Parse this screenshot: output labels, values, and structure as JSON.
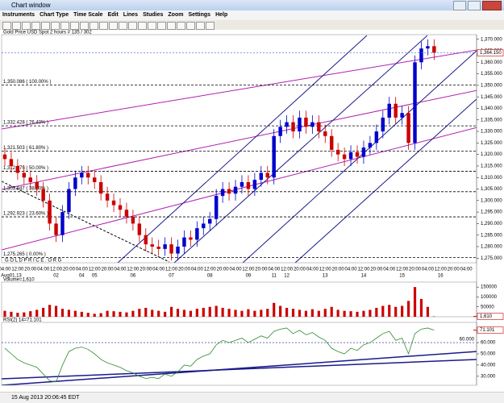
{
  "window_title": "Chart window",
  "menu": [
    "Instruments",
    "Chart Type",
    "Time Scale",
    "Edit",
    "Lines",
    "Studies",
    "Zoom",
    "Settings",
    "Help"
  ],
  "status": "15 Aug 2013 20:06:45 EDT",
  "chart_data": [
    {
      "type": "candlestick",
      "title": "Gold Price  USD Spot  2 hours  # 135 / 302",
      "watermark": "G O L D P R I C E . O R G",
      "categories": [
        null,
        "Aug01,13",
        null,
        null,
        null,
        null,
        null,
        null,
        "02",
        null,
        null,
        null,
        "04",
        null,
        "05",
        null,
        null,
        null,
        null,
        null,
        "06",
        null,
        null,
        null,
        null,
        null,
        "07",
        null,
        null,
        null,
        null,
        null,
        "08",
        null,
        null,
        null,
        null,
        null,
        "09",
        null,
        null,
        null,
        "11",
        null,
        "12",
        null,
        null,
        null,
        null,
        null,
        "13",
        null,
        null,
        null,
        null,
        null,
        "14",
        null,
        null,
        null,
        null,
        null,
        "15",
        null,
        null,
        null,
        null,
        null,
        "16",
        null,
        null,
        null,
        null,
        null
      ],
      "time_labels": [
        "04:00",
        null,
        "12:00",
        null,
        "20:00",
        null,
        "04:00",
        null,
        "12:00",
        null,
        "20:00",
        null,
        "04:00",
        null,
        "12:00",
        null,
        "20:00",
        null,
        "04:00",
        null,
        "12:00",
        null,
        "20:00",
        null,
        "04:00",
        null,
        "12:00",
        null,
        "20:00",
        null,
        "04:00",
        null,
        "12:00",
        null,
        "20:00",
        null,
        "04:00",
        null,
        "12:00",
        null,
        "20:00",
        null,
        "04:00",
        null,
        "12:00",
        null,
        "20:00",
        null,
        "04:00",
        null,
        "12:00",
        null,
        "20:00",
        null,
        "04:00",
        null,
        "12:00",
        null,
        "20:00",
        null,
        "04:00",
        null,
        "12:00",
        null,
        "20:00",
        null,
        "04:00",
        null,
        "12:00",
        null,
        "20:00",
        null,
        "04:00",
        null
      ],
      "open": [
        1320,
        1318,
        1315,
        1312,
        1310,
        1308,
        1305,
        1300,
        1290,
        1285,
        1295,
        1305,
        1310,
        1312,
        1310,
        1308,
        1303,
        1300,
        1298,
        1296,
        1293,
        1290,
        1285,
        1281,
        1280,
        1279,
        1281,
        1277,
        1280,
        1284,
        1283,
        1288,
        1290,
        1292,
        1302,
        1305,
        1303,
        1306,
        1308,
        1305,
        1309,
        1312,
        1310,
        1328,
        1332,
        1334,
        1330,
        1336,
        1332,
        1334,
        1330,
        1328,
        1322,
        1320,
        1318,
        1321,
        1319,
        1323,
        1325,
        1330,
        1336,
        1342,
        1336,
        1338,
        1325,
        1360,
        1366,
        1367,
        null,
        null,
        null,
        null,
        null,
        null
      ],
      "high": [
        1323,
        1321,
        1318,
        1315,
        1313,
        1311,
        1308,
        1303,
        1293,
        1298,
        1308,
        1313,
        1315,
        1315,
        1313,
        1311,
        1306,
        1303,
        1301,
        1299,
        1296,
        1293,
        1288,
        1284,
        1283,
        1284,
        1284,
        1283,
        1287,
        1287,
        1291,
        1293,
        1295,
        1305,
        1308,
        1308,
        1309,
        1311,
        1311,
        1312,
        1315,
        1315,
        1331,
        1335,
        1337,
        1337,
        1339,
        1339,
        1337,
        1337,
        1333,
        1331,
        1325,
        1323,
        1324,
        1324,
        1326,
        1328,
        1333,
        1339,
        1345,
        1345,
        1341,
        1341,
        1363,
        1369,
        1370,
        1370,
        null,
        null,
        null,
        null,
        null,
        null
      ],
      "low": [
        1315,
        1312,
        1309,
        1307,
        1305,
        1302,
        1297,
        1287,
        1282,
        1282,
        1292,
        1302,
        1307,
        1307,
        1305,
        1300,
        1297,
        1295,
        1293,
        1290,
        1287,
        1282,
        1278,
        1277,
        1276,
        1276,
        1274,
        1274,
        1277,
        1280,
        1280,
        1285,
        1287,
        1289,
        1299,
        1300,
        1300,
        1303,
        1302,
        1302,
        1306,
        1307,
        1307,
        1325,
        1329,
        1327,
        1327,
        1329,
        1329,
        1327,
        1325,
        1319,
        1317,
        1315,
        1315,
        1316,
        1316,
        1320,
        1322,
        1327,
        1333,
        1333,
        1333,
        1322,
        1322,
        1357,
        1363,
        1361,
        null,
        null,
        null,
        null,
        null,
        null
      ],
      "close": [
        1318,
        1315,
        1312,
        1310,
        1308,
        1305,
        1300,
        1290,
        1285,
        1295,
        1305,
        1310,
        1312,
        1310,
        1308,
        1303,
        1300,
        1298,
        1296,
        1293,
        1290,
        1285,
        1281,
        1280,
        1279,
        1281,
        1277,
        1280,
        1284,
        1283,
        1288,
        1290,
        1292,
        1302,
        1305,
        1303,
        1306,
        1308,
        1305,
        1309,
        1312,
        1310,
        1328,
        1332,
        1334,
        1330,
        1336,
        1332,
        1334,
        1330,
        1328,
        1322,
        1320,
        1318,
        1321,
        1319,
        1323,
        1325,
        1330,
        1336,
        1342,
        1336,
        1338,
        1325,
        1360,
        1366,
        1367,
        1364.15,
        null,
        null,
        null,
        null,
        null,
        null
      ],
      "up_color": "#0000cc",
      "down_color": "#cc0000",
      "ylim": [
        1273,
        1372
      ],
      "yticks": [
        {
          "value": 1275,
          "label": "1,275.000"
        },
        {
          "value": 1280,
          "label": "1,280.000"
        },
        {
          "value": 1285,
          "label": "1,285.000"
        },
        {
          "value": 1290,
          "label": "1,290.000"
        },
        {
          "value": 1295,
          "label": "1,295.000"
        },
        {
          "value": 1300,
          "label": "1,300.000"
        },
        {
          "value": 1305,
          "label": "1,305.000"
        },
        {
          "value": 1310,
          "label": "1,310.000"
        },
        {
          "value": 1315,
          "label": "1,315.000"
        },
        {
          "value": 1320,
          "label": "1,320.000"
        },
        {
          "value": 1325,
          "label": "1,325.000"
        },
        {
          "value": 1330,
          "label": "1,330.000"
        },
        {
          "value": 1335,
          "label": "1,335.000"
        },
        {
          "value": 1340,
          "label": "1,340.000"
        },
        {
          "value": 1345,
          "label": "1,345.000"
        },
        {
          "value": 1350,
          "label": "1,350.000"
        },
        {
          "value": 1355,
          "label": "1,355.000"
        },
        {
          "value": 1360,
          "label": "1,360.000"
        },
        {
          "value": 1365,
          "label": "1,365.000"
        },
        {
          "value": 1370,
          "label": "1,370.000"
        }
      ],
      "fib_levels": [
        {
          "value": 1350.086,
          "label": "1,350.086 ( 100.00% )"
        },
        {
          "value": 1332.428,
          "label": "1,332.428 ( 76.40% )"
        },
        {
          "value": 1321.503,
          "label": "1,321.503 ( 61.80% )"
        },
        {
          "value": 1312.675,
          "label": "1,312.675 ( 50.00% )"
        },
        {
          "value": 1303.847,
          "label": "1,303.847 ( 38.20% )"
        },
        {
          "value": 1292.923,
          "label": "1,292.923 ( 23.60% )"
        },
        {
          "value": 1275.265,
          "label": "1,275.265 ( 0.00% )"
        }
      ],
      "last": {
        "value": 1364.15,
        "label": "1,364.150"
      }
    },
    {
      "type": "bar",
      "title": "Volume=1,610",
      "color": "#cc0000",
      "values": [
        30000,
        25000,
        20000,
        22000,
        28000,
        35000,
        45000,
        60000,
        55000,
        40000,
        35000,
        30000,
        25000,
        20000,
        15000,
        18000,
        30000,
        28000,
        25000,
        22000,
        30000,
        40000,
        45000,
        35000,
        30000,
        25000,
        50000,
        40000,
        35000,
        30000,
        40000,
        45000,
        50000,
        55000,
        45000,
        40000,
        35000,
        30000,
        38000,
        30000,
        35000,
        40000,
        70000,
        55000,
        45000,
        40000,
        35000,
        30000,
        38000,
        30000,
        40000,
        50000,
        35000,
        30000,
        28000,
        25000,
        30000,
        35000,
        45000,
        55000,
        60000,
        50000,
        55000,
        80000,
        150000,
        90000,
        50000,
        1610,
        null,
        null,
        null,
        null,
        null,
        null
      ],
      "ylim": [
        0,
        175000
      ],
      "yticks": [
        50000,
        100000,
        150000
      ],
      "last": {
        "value": 1610,
        "label": "1,610"
      }
    },
    {
      "type": "line",
      "title": "RSI(2) 14=71.101",
      "color": "#2e8b2e",
      "values": [
        55,
        50,
        45,
        42,
        40,
        38,
        32,
        26,
        25,
        40,
        52,
        55,
        56,
        54,
        50,
        45,
        42,
        40,
        38,
        35,
        33,
        30,
        28,
        29,
        28,
        32,
        30,
        34,
        40,
        39,
        45,
        48,
        50,
        58,
        62,
        60,
        62,
        64,
        60,
        63,
        66,
        64,
        70,
        72,
        73,
        68,
        71,
        67,
        69,
        65,
        62,
        55,
        52,
        50,
        55,
        53,
        58,
        60,
        64,
        68,
        70,
        62,
        64,
        50,
        68,
        72,
        73,
        71.101,
        null,
        null,
        null,
        null,
        null,
        null
      ],
      "ylim": [
        22,
        78
      ],
      "yticks": [
        {
          "value": 30,
          "label": "30.000"
        },
        {
          "value": 40,
          "label": "40.000"
        },
        {
          "value": 50,
          "label": "50.000"
        },
        {
          "value": 60,
          "label": "60.000"
        },
        {
          "value": 70,
          "label": "70.000"
        }
      ],
      "levels": [
        {
          "value": 60,
          "label": "60.000"
        }
      ],
      "last": {
        "value": 71.101,
        "label": "71.101"
      }
    }
  ]
}
